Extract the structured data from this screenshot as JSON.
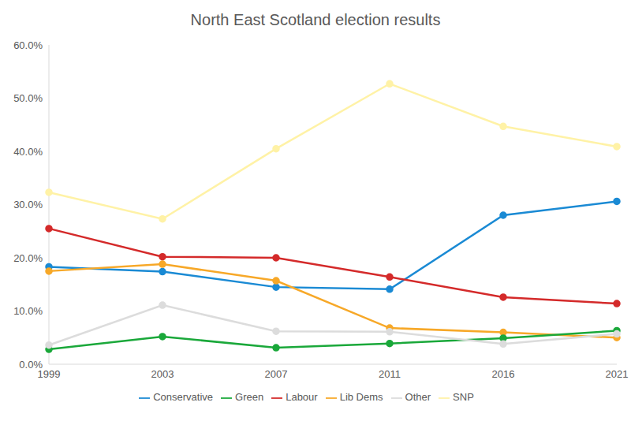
{
  "chart_data": {
    "type": "line",
    "title": "North East Scotland election results",
    "categories": [
      "1999",
      "2003",
      "2007",
      "2011",
      "2016",
      "2021"
    ],
    "series": [
      {
        "name": "SNP",
        "color": "#fff2a6",
        "values": [
          32.3,
          27.3,
          40.5,
          52.7,
          44.7,
          40.9
        ]
      },
      {
        "name": "Conservative",
        "color": "#1a8ad4",
        "values": [
          18.3,
          17.4,
          14.5,
          14.1,
          28.0,
          30.6
        ]
      },
      {
        "name": "Labour",
        "color": "#d42a2a",
        "values": [
          25.5,
          20.2,
          20.0,
          16.4,
          12.6,
          11.4
        ]
      },
      {
        "name": "Lib Dems",
        "color": "#f7a828",
        "values": [
          17.5,
          18.8,
          15.7,
          6.8,
          6.0,
          5.0
        ]
      },
      {
        "name": "Green",
        "color": "#1aa83a",
        "values": [
          2.8,
          5.2,
          3.1,
          3.9,
          4.9,
          6.3
        ]
      },
      {
        "name": "Other",
        "color": "#dcdcdc",
        "values": [
          3.6,
          11.1,
          6.2,
          6.1,
          3.8,
          5.7
        ]
      }
    ],
    "ylim": [
      0,
      60
    ],
    "yticks": [
      {
        "value": 0,
        "label": "0.0%"
      },
      {
        "value": 10,
        "label": "10.0%"
      },
      {
        "value": 20,
        "label": "20.0%"
      },
      {
        "value": 30,
        "label": "30.0%"
      },
      {
        "value": 40,
        "label": "40.0%"
      },
      {
        "value": 50,
        "label": "50.0%"
      },
      {
        "value": 60,
        "label": "60.0%"
      }
    ],
    "grid": false,
    "legend": "bottom",
    "marker": "circle"
  }
}
